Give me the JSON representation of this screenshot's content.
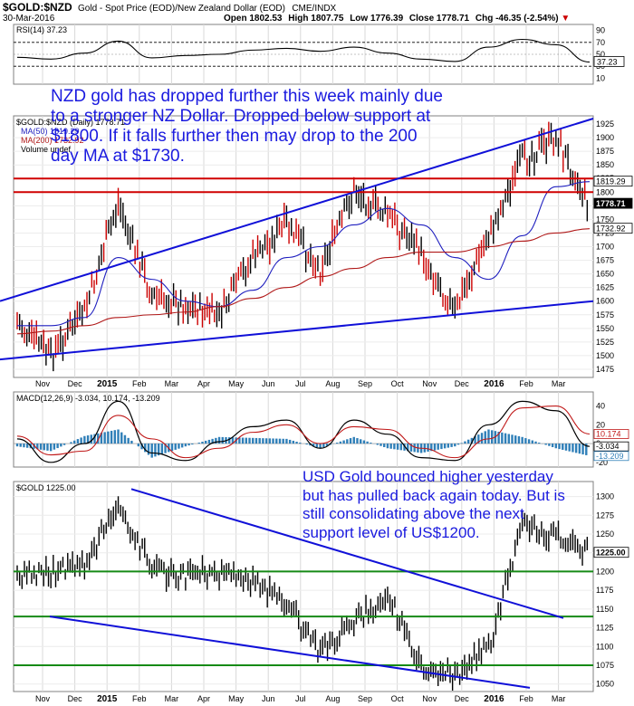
{
  "header": {
    "symbol": "$GOLD:$NZD",
    "description": "Gold - Spot Price (EOD)/New Zealand Dollar (EOD)",
    "exchange": "CME/INDX",
    "date": "30-Mar-2016",
    "open": "Open 1802.53",
    "high": "High 1807.75",
    "low": "Low 1776.39",
    "close": "Close 1778.71",
    "chg": "Chg -46.35 (-2.54%)"
  },
  "annotations": {
    "nzd_note": [
      "NZD gold has dropped further this week mainly due",
      "to a stronger NZ Dollar. Dropped below support at",
      "$1800. If it falls further then may drop to the 200",
      "day MA at $1730."
    ],
    "usd_note": [
      "USD Gold bounced higher yesterday",
      "but has pulled back again today. But is",
      "still consolidating above the next",
      "support level of US$1200."
    ]
  },
  "colors": {
    "bull": "#000000",
    "bear": "#cc0000",
    "ma50": "#1f1fbf",
    "ma200": "#b01818",
    "trend": "#1010d8",
    "support_red": "#d00000",
    "support_green": "#168a16",
    "macd_hist": "#2f7fb8",
    "note_text": "#1a1adf"
  },
  "chart_data": [
    {
      "type": "line",
      "title": "RSI(14) 37.23",
      "ylim": [
        0,
        100
      ],
      "ticks": [
        10,
        30,
        50,
        70,
        90
      ],
      "reference_lines": [
        30,
        70
      ],
      "last_value": "37.23",
      "x": [
        "Nov 2014",
        "Dec",
        "Jan 2015",
        "Feb",
        "Mar",
        "Apr",
        "May",
        "Jun",
        "Jul",
        "Aug",
        "Sep",
        "Oct",
        "Nov",
        "Dec",
        "Jan 2016",
        "Feb",
        "Mar",
        "Mar-30"
      ],
      "values": [
        45,
        42,
        52,
        72,
        44,
        48,
        50,
        57,
        60,
        55,
        62,
        52,
        42,
        38,
        62,
        75,
        66,
        37
      ]
    },
    {
      "type": "line",
      "title": "$GOLD:$NZD (Daily) 1778.71",
      "legend": [
        "MA(50) 1819.29",
        "MA(200) 1732.92",
        "Volume undef"
      ],
      "ylim": [
        1460,
        1940
      ],
      "ticks": [
        1475,
        1500,
        1525,
        1550,
        1575,
        1600,
        1625,
        1650,
        1675,
        1700,
        1725,
        1750,
        1775,
        1800,
        1825,
        1850,
        1875,
        1900,
        1925
      ],
      "x_labels": [
        "Nov",
        "Dec",
        "2015",
        "Feb",
        "Mar",
        "Apr",
        "May",
        "Jun",
        "Jul",
        "Aug",
        "Sep",
        "Oct",
        "Nov",
        "Dec",
        "2016",
        "Feb",
        "Mar"
      ],
      "series": [
        {
          "name": "$GOLD:$NZD",
          "x": [
            "Nov 2014",
            "Dec",
            "Jan 2015",
            "Feb",
            "Mar",
            "Apr",
            "May",
            "Jun",
            "Jul",
            "Aug",
            "Sep",
            "Oct",
            "Nov",
            "Dec",
            "Jan 2016",
            "Feb",
            "Mar",
            "Mar-30"
          ],
          "values": [
            1560,
            1500,
            1580,
            1780,
            1610,
            1590,
            1575,
            1680,
            1740,
            1660,
            1800,
            1760,
            1690,
            1580,
            1720,
            1860,
            1900,
            1778.71
          ]
        },
        {
          "name": "MA(50) 1819.29",
          "x": [
            "Nov 2014",
            "Dec",
            "Jan 2015",
            "Feb",
            "Mar",
            "Apr",
            "May",
            "Jun",
            "Jul",
            "Aug",
            "Sep",
            "Oct",
            "Nov",
            "Dec",
            "Jan 2016",
            "Feb",
            "Mar",
            "Mar-30"
          ],
          "values": [
            1555,
            1555,
            1570,
            1680,
            1640,
            1600,
            1590,
            1620,
            1680,
            1700,
            1740,
            1770,
            1740,
            1680,
            1640,
            1720,
            1810,
            1819.29
          ]
        },
        {
          "name": "MA(200) 1732.92",
          "x": [
            "Nov 2014",
            "Dec",
            "Jan 2015",
            "Feb",
            "Mar",
            "Apr",
            "May",
            "Jun",
            "Jul",
            "Aug",
            "Sep",
            "Oct",
            "Nov",
            "Dec",
            "Jan 2016",
            "Feb",
            "Mar",
            "Mar-30"
          ],
          "values": [
            1540,
            1545,
            1555,
            1570,
            1575,
            1580,
            1590,
            1605,
            1625,
            1645,
            1660,
            1680,
            1690,
            1690,
            1700,
            1710,
            1725,
            1732.92
          ]
        }
      ],
      "price_labels": [
        "1819.29",
        "1778.71",
        "1732.92"
      ],
      "horizontal_lines": [
        1825,
        1800
      ],
      "trendlines": [
        {
          "from": [
            "Nov 2014",
            1600
          ],
          "to": [
            "Apr 2016",
            1935
          ]
        },
        {
          "from": [
            "Nov 2014",
            1493
          ],
          "to": [
            "Apr 2016",
            1600
          ]
        }
      ]
    },
    {
      "type": "line",
      "title": "MACD(12,26,9) -3.034, 10.174, -13.209",
      "ylim": [
        -25,
        55
      ],
      "ticks": [
        -20,
        0,
        20,
        40
      ],
      "x": [
        "Nov 2014",
        "Dec",
        "Jan 2015",
        "Feb",
        "Mar",
        "Apr",
        "May",
        "Jun",
        "Jul",
        "Aug",
        "Sep",
        "Oct",
        "Nov",
        "Dec",
        "Jan 2016",
        "Feb",
        "Mar",
        "Mar-30"
      ],
      "series": [
        {
          "name": "MACD",
          "values": [
            5,
            -20,
            0,
            45,
            -10,
            -18,
            2,
            18,
            25,
            -5,
            25,
            10,
            -15,
            -18,
            20,
            45,
            35,
            -3.034
          ]
        },
        {
          "name": "Signal",
          "values": [
            8,
            -12,
            -8,
            30,
            5,
            -15,
            -5,
            12,
            20,
            0,
            18,
            15,
            -5,
            -15,
            5,
            38,
            40,
            10.174
          ]
        },
        {
          "name": "Histogram",
          "values": [
            -3,
            -8,
            8,
            15,
            -15,
            -3,
            7,
            6,
            5,
            -5,
            7,
            -5,
            -10,
            -3,
            15,
            7,
            -5,
            -13.209
          ]
        }
      ],
      "value_labels": [
        "10.174",
        "-3.034",
        "-13.209"
      ]
    },
    {
      "type": "line",
      "title": "$GOLD 1225.00",
      "ylim": [
        1040,
        1320
      ],
      "ticks": [
        1050,
        1075,
        1100,
        1125,
        1150,
        1175,
        1200,
        1225,
        1250,
        1275,
        1300
      ],
      "x_labels": [
        "Nov",
        "Dec",
        "2015",
        "Feb",
        "Mar",
        "Apr",
        "May",
        "Jun",
        "Jul",
        "Aug",
        "Sep",
        "Oct",
        "Nov",
        "Dec",
        "2016",
        "Feb",
        "Mar"
      ],
      "series": [
        {
          "name": "$GOLD",
          "x": [
            "Nov 2014",
            "Dec",
            "Jan 2015",
            "Feb",
            "Mar",
            "Apr",
            "May",
            "Jun",
            "Jul",
            "Aug",
            "Sep",
            "Oct",
            "Nov",
            "Dec",
            "Jan 2016",
            "Feb",
            "Mar",
            "Mar-30"
          ],
          "values": [
            1195,
            1200,
            1210,
            1290,
            1200,
            1195,
            1200,
            1185,
            1160,
            1090,
            1130,
            1170,
            1070,
            1060,
            1100,
            1260,
            1245,
            1225
          ]
        }
      ],
      "price_labels": [
        "1225.00"
      ],
      "horizontal_lines": [
        1200,
        1140,
        1075
      ],
      "trendlines": [
        {
          "from": [
            "Feb 2015",
            1310
          ],
          "to": [
            "Mar 2016",
            1138
          ]
        },
        {
          "from": [
            "Nov 2014",
            1140
          ],
          "to": [
            "Mar 2016",
            1045
          ]
        }
      ]
    }
  ]
}
